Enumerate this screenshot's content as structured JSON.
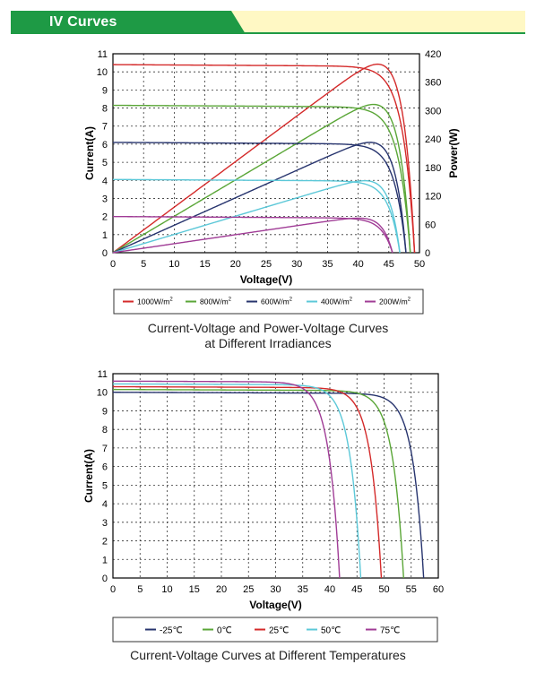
{
  "header": {
    "title": "IV Curves"
  },
  "colors": {
    "header_green": "#1e9a45",
    "header_band": "#fff8c4",
    "header_divider": "#1e9a45"
  },
  "chart_data": [
    {
      "type": "line",
      "title": "Current-Voltage and Power-Voltage Curves\nat Different Irradiances",
      "xlabel": "Voltage(V)",
      "ylabel": "Current(A)",
      "y2label": "Power(W)",
      "xlim": [
        0,
        50
      ],
      "ylim": [
        0,
        11
      ],
      "y2lim": [
        0,
        420
      ],
      "xticks": [
        "0",
        "5",
        "10",
        "15",
        "20",
        "25",
        "30",
        "35",
        "40",
        "45",
        "50"
      ],
      "yticks": [
        "0",
        "1",
        "2",
        "3",
        "4",
        "5",
        "6",
        "7",
        "8",
        "9",
        "10",
        "11"
      ],
      "y2ticks": [
        "0",
        "60",
        "120",
        "180",
        "240",
        "300",
        "360",
        "420"
      ],
      "grid": true,
      "legend_position": "bottom",
      "series": [
        {
          "name": "1000W/m²",
          "label_main": "1000W/m",
          "label_sup": "2",
          "color": "#d42a2a",
          "isc": 10.4,
          "voc": 49.2,
          "vmp": 39.6,
          "pmax": 398
        },
        {
          "name": "800W/m²",
          "label_main": "800W/m",
          "label_sup": "2",
          "color": "#5aa637",
          "isc": 8.15,
          "voc": 48.5,
          "vmp": 39.4,
          "pmax": 313
        },
        {
          "name": "600W/m²",
          "label_main": "600W/m",
          "label_sup": "2",
          "color": "#27346e",
          "isc": 6.1,
          "voc": 47.8,
          "vmp": 39.0,
          "pmax": 233
        },
        {
          "name": "400W/m²",
          "label_main": "400W/m",
          "label_sup": "2",
          "color": "#5cc8d8",
          "isc": 4.05,
          "voc": 46.8,
          "vmp": 38.0,
          "pmax": 152
        },
        {
          "name": "200W/m²",
          "label_main": "200W/m",
          "label_sup": "2",
          "color": "#a03c96",
          "isc": 2.0,
          "voc": 45.6,
          "vmp": 37.2,
          "pmax": 73
        }
      ]
    },
    {
      "type": "line",
      "title": "Current-Voltage Curves at Different Temperatures",
      "xlabel": "Voltage(V)",
      "ylabel": "Current(A)",
      "xlim": [
        0,
        60
      ],
      "ylim": [
        0,
        11
      ],
      "xticks": [
        "0",
        "5",
        "10",
        "15",
        "20",
        "25",
        "30",
        "35",
        "40",
        "45",
        "50",
        "55",
        "60"
      ],
      "yticks": [
        "0",
        "1",
        "2",
        "3",
        "4",
        "5",
        "6",
        "7",
        "8",
        "9",
        "10",
        "11"
      ],
      "grid": true,
      "legend_position": "bottom",
      "series": [
        {
          "name": "-25℃",
          "color": "#27346e",
          "isc": 10.0,
          "voc": 57.3
        },
        {
          "name": "0℃",
          "color": "#5aa637",
          "isc": 10.15,
          "voc": 53.6
        },
        {
          "name": "25℃",
          "color": "#d42a2a",
          "isc": 10.3,
          "voc": 49.5
        },
        {
          "name": "50℃",
          "color": "#5cc8d8",
          "isc": 10.45,
          "voc": 45.7
        },
        {
          "name": "75℃",
          "color": "#a03c96",
          "isc": 10.6,
          "voc": 41.8
        }
      ]
    }
  ]
}
